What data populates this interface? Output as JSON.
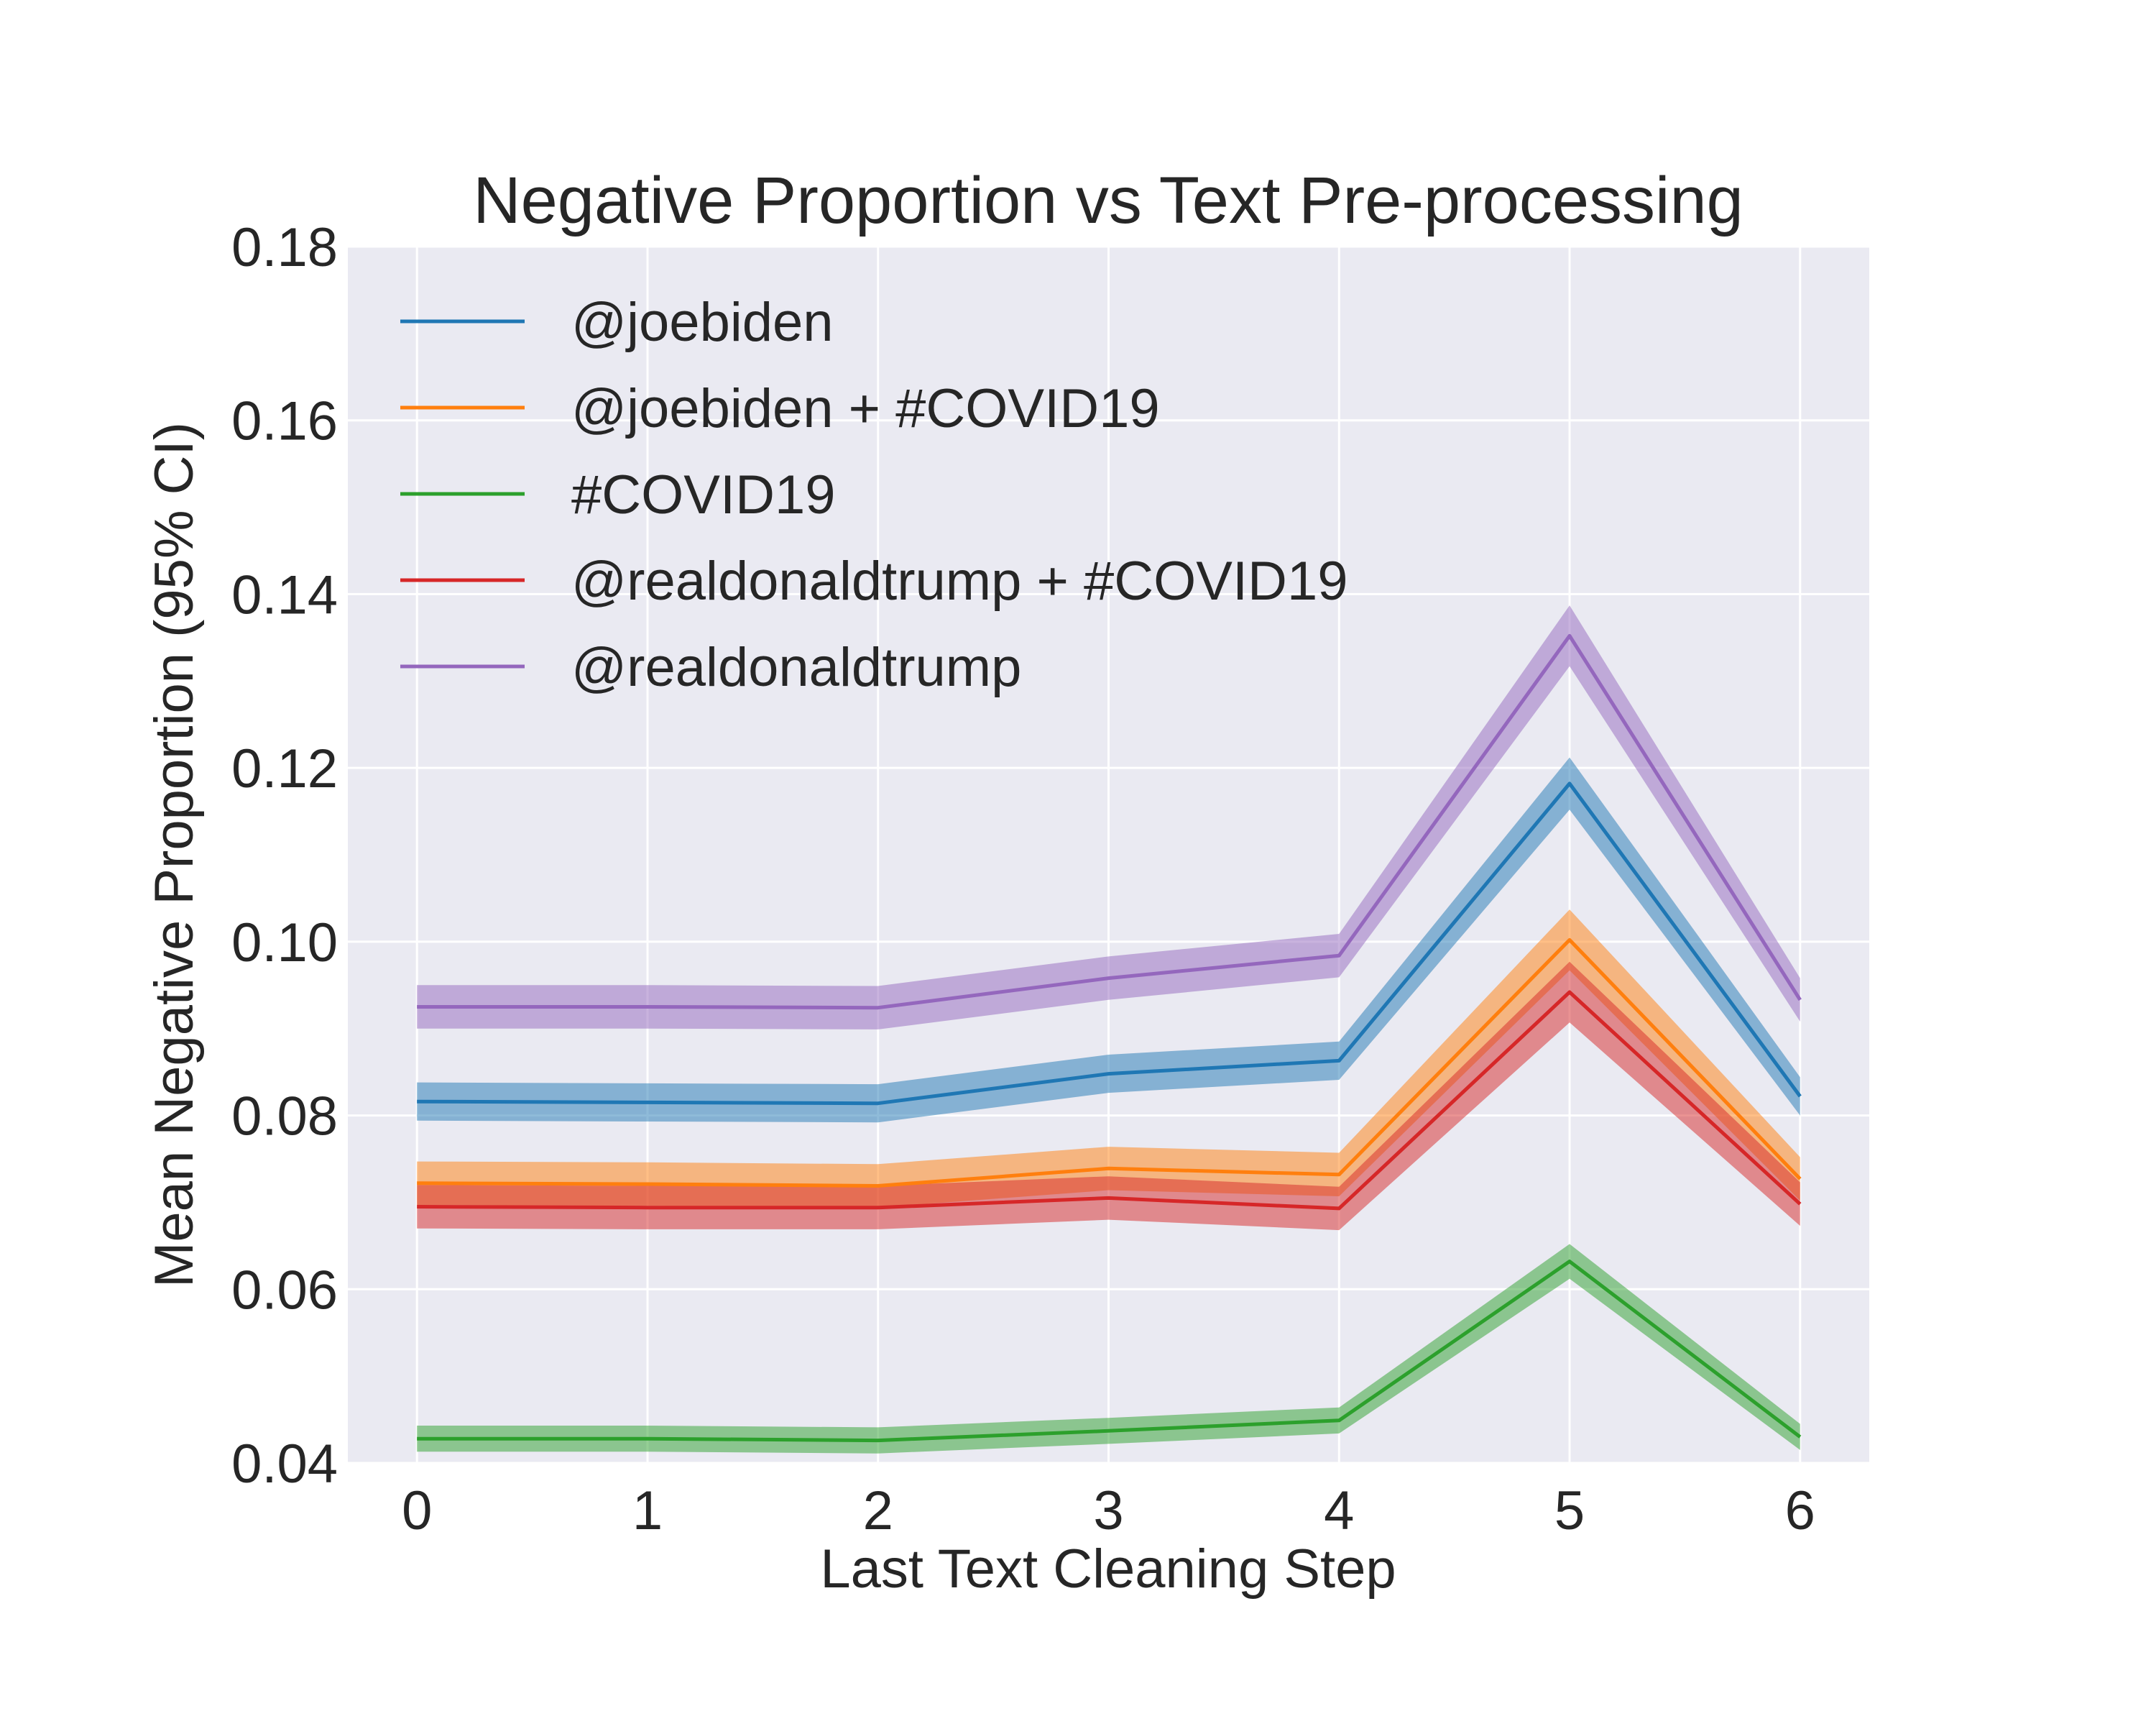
{
  "chart_data": {
    "type": "line",
    "title": "Negative Proportion vs Text Pre-processing",
    "xlabel": "Last Text Cleaning Step",
    "ylabel": "Mean Negative Proportion (95% CI)",
    "x": [
      0,
      1,
      2,
      3,
      4,
      5,
      6
    ],
    "xlim": [
      -0.3,
      6.3
    ],
    "ylim": [
      0.04,
      0.18
    ],
    "xticks": [
      "0",
      "1",
      "2",
      "3",
      "4",
      "5",
      "6"
    ],
    "yticks": [
      "0.04",
      "0.06",
      "0.08",
      "0.10",
      "0.12",
      "0.14",
      "0.16",
      "0.18"
    ],
    "grid": true,
    "legend_position": "top-left",
    "series": [
      {
        "name": "@joebiden",
        "color": "#1f77b4",
        "values": [
          0.0816,
          0.0815,
          0.0814,
          0.0848,
          0.0863,
          0.1182,
          0.0822
        ],
        "ci": [
          0.0022,
          0.0022,
          0.0022,
          0.0022,
          0.0022,
          0.003,
          0.0022
        ]
      },
      {
        "name": "@joebiden + #COVID19",
        "color": "#ff7f0e",
        "values": [
          0.0722,
          0.0721,
          0.0719,
          0.0739,
          0.0732,
          0.1002,
          0.0727
        ],
        "ci": [
          0.0025,
          0.0025,
          0.0025,
          0.0025,
          0.0025,
          0.0035,
          0.0025
        ]
      },
      {
        "name": "#COVID19",
        "color": "#2ca02c",
        "values": [
          0.0428,
          0.0428,
          0.0426,
          0.0437,
          0.0449,
          0.0632,
          0.043
        ],
        "ci": [
          0.0015,
          0.0015,
          0.0015,
          0.0015,
          0.0015,
          0.002,
          0.0015
        ]
      },
      {
        "name": "@realdonaldtrump + #COVID19",
        "color": "#d62728",
        "values": [
          0.0695,
          0.0694,
          0.0694,
          0.0705,
          0.0693,
          0.0942,
          0.0698
        ],
        "ci": [
          0.0025,
          0.0025,
          0.0025,
          0.0025,
          0.0025,
          0.0035,
          0.0025
        ]
      },
      {
        "name": "@realdonaldtrump",
        "color": "#9467bd",
        "values": [
          0.0925,
          0.0925,
          0.0924,
          0.0958,
          0.0984,
          0.1352,
          0.0933
        ],
        "ci": [
          0.0025,
          0.0025,
          0.0025,
          0.0025,
          0.0025,
          0.0035,
          0.0025
        ]
      }
    ]
  }
}
